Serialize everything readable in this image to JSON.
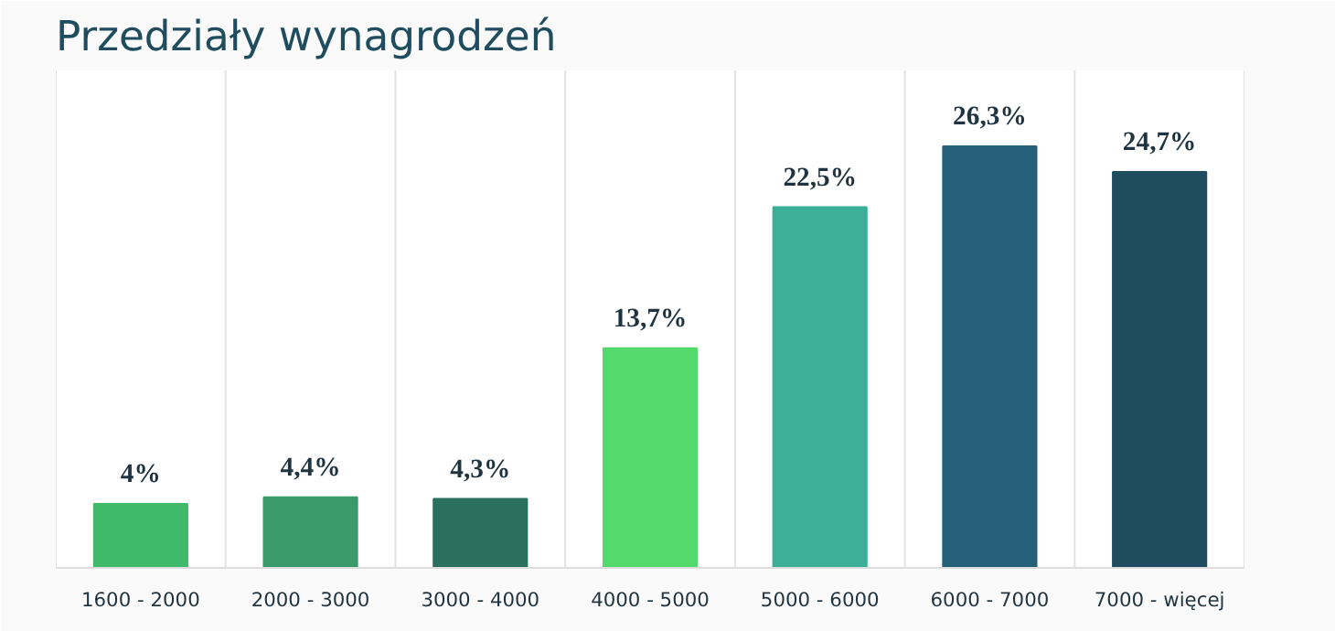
{
  "chart_data": {
    "type": "bar",
    "title": "Przedziały wynagrodzeń",
    "categories": [
      "1600 - 2000",
      "2000 - 3000",
      "3000 - 4000",
      "4000 - 5000",
      "5000 - 6000",
      "6000 - 7000",
      "7000 - więcej"
    ],
    "values": [
      4,
      4.4,
      4.3,
      13.7,
      22.5,
      26.3,
      24.7
    ],
    "value_labels": [
      "4%",
      "4,4%",
      "4,3%",
      "13,7%",
      "22,5%",
      "26,3%",
      "24,7%"
    ],
    "colors": [
      "#3fba6b",
      "#3a9a6a",
      "#2b6f60",
      "#54d96c",
      "#3baf97",
      "#255f78",
      "#1f4c5e"
    ],
    "grid": "x"
  }
}
